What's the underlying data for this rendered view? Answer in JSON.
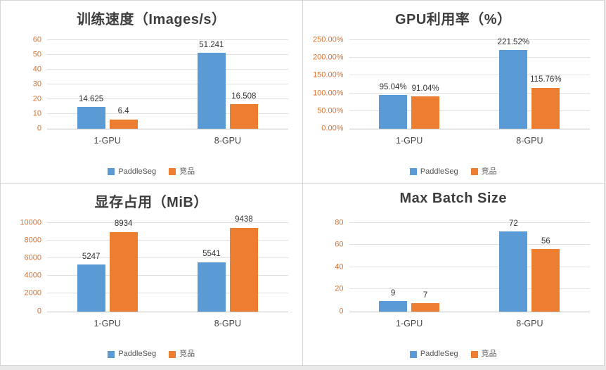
{
  "colors": {
    "paddleseg_blue": "#5B9BD5",
    "competitor_orange": "#ED7D31",
    "axis_tick_orange": "#D9702C",
    "title_gray": "#3d3d3d",
    "grid_gray": "#e0e0e0"
  },
  "chart_data": [
    {
      "type": "bar",
      "title": "训练速度（Images/s）",
      "categories": [
        "1-GPU",
        "8-GPU"
      ],
      "series": [
        {
          "key": "paddleseg",
          "name": "PaddleSeg",
          "color": "#5B9BD5",
          "values": [
            14.625,
            51.241
          ],
          "labels": [
            "14.625",
            "51.241"
          ]
        },
        {
          "key": "competitor",
          "name": "竞品",
          "color": "#ED7D31",
          "values": [
            6.4,
            16.508
          ],
          "labels": [
            "6.4",
            "16.508"
          ]
        }
      ],
      "ylim": [
        0,
        60
      ],
      "yticks": [
        0,
        10,
        20,
        30,
        40,
        50,
        60
      ],
      "ytick_labels": [
        "0",
        "10",
        "20",
        "30",
        "40",
        "50",
        "60"
      ],
      "grid": true,
      "legend_position": "bottom"
    },
    {
      "type": "bar",
      "title": "GPU利用率（%）",
      "categories": [
        "1-GPU",
        "8-GPU"
      ],
      "series": [
        {
          "key": "paddleseg",
          "name": "PaddleSeg",
          "color": "#5B9BD5",
          "values": [
            95.04,
            221.52
          ],
          "labels": [
            "95.04%",
            "221.52%"
          ]
        },
        {
          "key": "competitor",
          "name": "竞品",
          "color": "#ED7D31",
          "values": [
            91.04,
            115.76
          ],
          "labels": [
            "91.04%",
            "115.76%"
          ]
        }
      ],
      "ylim": [
        0,
        250
      ],
      "yticks": [
        0,
        50,
        100,
        150,
        200,
        250
      ],
      "ytick_labels": [
        "0.00%",
        "50.00%",
        "100.00%",
        "150.00%",
        "200.00%",
        "250.00%"
      ],
      "grid": true,
      "legend_position": "bottom"
    },
    {
      "type": "bar",
      "title": "显存占用（MiB）",
      "categories": [
        "1-GPU",
        "8-GPU"
      ],
      "series": [
        {
          "key": "paddleseg",
          "name": "PaddleSeg",
          "color": "#5B9BD5",
          "values": [
            5247,
            5541
          ],
          "labels": [
            "5247",
            "5541"
          ]
        },
        {
          "key": "competitor",
          "name": "竞品",
          "color": "#ED7D31",
          "values": [
            8934,
            9438
          ],
          "labels": [
            "8934",
            "9438"
          ]
        }
      ],
      "ylim": [
        0,
        10000
      ],
      "yticks": [
        0,
        2000,
        4000,
        6000,
        8000,
        10000
      ],
      "ytick_labels": [
        "0",
        "2000",
        "4000",
        "6000",
        "8000",
        "10000"
      ],
      "grid": true,
      "legend_position": "bottom"
    },
    {
      "type": "bar",
      "title": "Max Batch Size",
      "categories": [
        "1-GPU",
        "8-GPU"
      ],
      "series": [
        {
          "key": "paddleseg",
          "name": "PaddleSeg",
          "color": "#5B9BD5",
          "values": [
            9,
            72
          ],
          "labels": [
            "9",
            "72"
          ]
        },
        {
          "key": "competitor",
          "name": "竞品",
          "color": "#ED7D31",
          "values": [
            7,
            56
          ],
          "labels": [
            "7",
            "56"
          ]
        }
      ],
      "ylim": [
        0,
        80
      ],
      "yticks": [
        0,
        20,
        40,
        60,
        80
      ],
      "ytick_labels": [
        "0",
        "20",
        "40",
        "60",
        "80"
      ],
      "grid": true,
      "legend_position": "bottom"
    }
  ]
}
